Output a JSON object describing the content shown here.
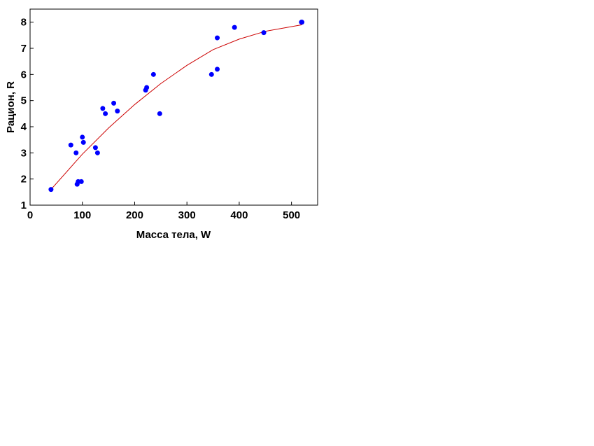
{
  "chart_data": {
    "type": "scatter",
    "title": "",
    "xlabel": "Масса тела, W",
    "ylabel": "Рацион, R",
    "xlim": [
      0,
      550
    ],
    "ylim": [
      1,
      8.5
    ],
    "x_ticks": [
      "0",
      "100",
      "200",
      "300",
      "400",
      "500"
    ],
    "y_ticks": [
      "1",
      "2",
      "3",
      "4",
      "5",
      "6",
      "7",
      "8"
    ],
    "grid": false,
    "legend": "none",
    "point_color": "#0000ff",
    "curve_color": "#cc0000",
    "points": [
      {
        "x": 40,
        "y": 1.6
      },
      {
        "x": 78,
        "y": 3.3
      },
      {
        "x": 88,
        "y": 3.0
      },
      {
        "x": 90,
        "y": 1.8
      },
      {
        "x": 92,
        "y": 1.9
      },
      {
        "x": 98,
        "y": 1.9
      },
      {
        "x": 100,
        "y": 3.6
      },
      {
        "x": 102,
        "y": 3.4
      },
      {
        "x": 125,
        "y": 3.2
      },
      {
        "x": 129,
        "y": 3.0
      },
      {
        "x": 139,
        "y": 4.7
      },
      {
        "x": 144,
        "y": 4.5
      },
      {
        "x": 160,
        "y": 4.9
      },
      {
        "x": 167,
        "y": 4.6
      },
      {
        "x": 221,
        "y": 5.4
      },
      {
        "x": 223,
        "y": 5.5
      },
      {
        "x": 236,
        "y": 6.0
      },
      {
        "x": 248,
        "y": 4.5
      },
      {
        "x": 347,
        "y": 6.0
      },
      {
        "x": 358,
        "y": 6.2
      },
      {
        "x": 358,
        "y": 7.4
      },
      {
        "x": 391,
        "y": 7.8
      },
      {
        "x": 447,
        "y": 7.6
      },
      {
        "x": 519,
        "y": 8.0
      },
      {
        "x": 520,
        "y": 8.0
      }
    ],
    "fit_curve": {
      "type": "quadratic",
      "x_range": [
        40,
        520
      ],
      "x": [
        40,
        100,
        150,
        200,
        250,
        300,
        350,
        400,
        450,
        520
      ],
      "y": [
        1.6,
        2.95,
        3.95,
        4.85,
        5.65,
        6.35,
        6.95,
        7.35,
        7.65,
        7.9
      ]
    }
  }
}
